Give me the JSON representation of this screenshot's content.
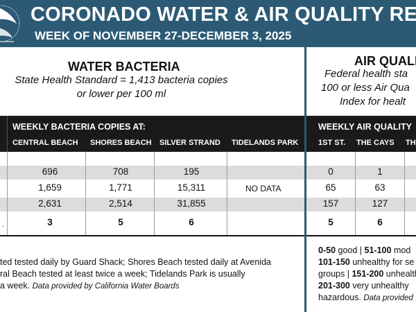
{
  "header": {
    "title": "CORONADO WATER & AIR QUALITY REPORT",
    "subtitle": "WEEK OF NOVEMBER 27-DECEMBER 3, 2025",
    "logo_icon": "seal-logo-icon",
    "bg_color": "#2c5a75"
  },
  "water": {
    "title": "WATER BACTERIA",
    "standard_line1": "State Health Standard  = 1,413 bacteria copies",
    "standard_line2": "or lower per 100 ml",
    "bar_title": "WEEKLY BACTERIA COPIES AT:",
    "columns": [
      "CENTRAL BEACH",
      "SHORES BEACH",
      "SILVER STRAND",
      "TIDELANDS PARK"
    ],
    "rows": [
      [
        "696",
        "708",
        "195"
      ],
      [
        "1,659",
        "1,771",
        "15,311"
      ],
      [
        "2,631",
        "2,514",
        "31,855"
      ],
      [
        "3",
        "5",
        "6"
      ]
    ],
    "tidelands_value": "NO DATA",
    "row_label_glyph": ".",
    "note_line1": "ted tested daily by Guard Shack; Shores Beach tested daily at Avenida",
    "note_line2": "ral Beach tested at least twice a week; Tidelands Park is usually",
    "note_line3": "a week.",
    "note_source": "Data provided by California Water Boards"
  },
  "air": {
    "title": "AIR QUALITY",
    "standard_line1": "Federal health sta",
    "standard_line2": "100 or less Air Qua",
    "standard_line3": "Index for healt",
    "bar_title": "WEEKLY AIR QUALITY",
    "columns": [
      "1ST ST.",
      "THE CAYS",
      "TH"
    ],
    "rows": [
      [
        "0",
        "1"
      ],
      [
        "65",
        "63"
      ],
      [
        "157",
        "127"
      ],
      [
        "5",
        "6"
      ]
    ],
    "legend": {
      "r1a": "0-50",
      "r1b": "good |",
      "r1c": "51-100",
      "r1d": "mod",
      "r2a": "101-150",
      "r2b": "unhealthy for se",
      "r3a": "groups |",
      "r3b": "151-200",
      "r3c": "unhealth",
      "r4a": "201-300",
      "r4b": "very unhealthy",
      "r5a": "hazardous.",
      "r5b": "Data provided"
    }
  }
}
